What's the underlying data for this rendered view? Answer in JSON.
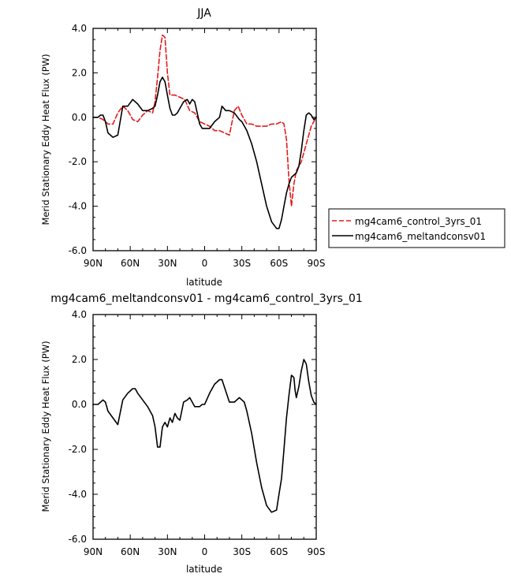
{
  "chart_data": [
    {
      "type": "line",
      "title": "JJA",
      "xlabel": "latitude",
      "ylabel": "Merid Stationary Eddy Heat Flux (PW)",
      "xlim": [
        90,
        -90
      ],
      "ylim": [
        -6,
        4
      ],
      "x_ticks": [
        90,
        60,
        30,
        0,
        -30,
        -60,
        -90
      ],
      "x_tick_labels": [
        "90N",
        "60N",
        "30N",
        "0",
        "30S",
        "60S",
        "90S"
      ],
      "y_ticks": [
        -6,
        -4,
        -2,
        0,
        2,
        4
      ],
      "y_tick_labels": [
        "-6.0",
        "-4.0",
        "-2.0",
        "0.0",
        "2.0",
        "4.0"
      ],
      "grid": false,
      "legend": "right",
      "series": [
        {
          "name": "mg4cam6_control_3yrs_01",
          "color": "#e31a1c",
          "style": "dashed",
          "x": [
            90,
            86,
            82,
            78,
            74,
            70,
            66,
            62,
            58,
            54,
            50,
            46,
            42,
            40,
            38,
            36,
            34,
            32,
            30,
            28,
            24,
            20,
            16,
            12,
            8,
            4,
            0,
            -4,
            -8,
            -12,
            -16,
            -20,
            -24,
            -27,
            -30,
            -34,
            -38,
            -42,
            -46,
            -50,
            -54,
            -58,
            -62,
            -64,
            -66,
            -68,
            -70,
            -72,
            -74,
            -76,
            -78,
            -82,
            -86,
            -90
          ],
          "y": [
            0.0,
            0.0,
            -0.1,
            -0.3,
            -0.3,
            0.2,
            0.5,
            0.3,
            -0.1,
            -0.2,
            0.1,
            0.3,
            0.2,
            0.7,
            1.8,
            3.0,
            3.7,
            3.6,
            2.0,
            1.0,
            1.0,
            0.9,
            0.8,
            0.3,
            0.2,
            -0.2,
            -0.3,
            -0.4,
            -0.6,
            -0.6,
            -0.7,
            -0.8,
            0.3,
            0.5,
            0.1,
            -0.3,
            -0.3,
            -0.4,
            -0.4,
            -0.4,
            -0.3,
            -0.3,
            -0.2,
            -0.3,
            -1.0,
            -2.8,
            -4.0,
            -3.0,
            -2.4,
            -2.2,
            -2.0,
            -1.2,
            -0.4,
            0.0
          ]
        },
        {
          "name": "mg4cam6_meltandconsv01",
          "color": "#000000",
          "style": "solid",
          "x": [
            90,
            86,
            84,
            82,
            80,
            78,
            74,
            70,
            66,
            62,
            58,
            54,
            50,
            46,
            42,
            40,
            38,
            36,
            34,
            32,
            30,
            28,
            26,
            24,
            22,
            20,
            17,
            14,
            12,
            10,
            8,
            6,
            4,
            2,
            0,
            -4,
            -8,
            -12,
            -14,
            -17,
            -20,
            -24,
            -28,
            -30,
            -34,
            -38,
            -42,
            -46,
            -50,
            -54,
            -58,
            -60,
            -62,
            -64,
            -66,
            -68,
            -70,
            -72,
            -74,
            -76,
            -78,
            -80,
            -82,
            -84,
            -86,
            -88,
            -90
          ],
          "y": [
            0.0,
            0.0,
            0.1,
            0.1,
            -0.2,
            -0.7,
            -0.9,
            -0.8,
            0.5,
            0.5,
            0.8,
            0.6,
            0.3,
            0.3,
            0.4,
            0.5,
            1.0,
            1.6,
            1.8,
            1.6,
            1.0,
            0.4,
            0.1,
            0.1,
            0.2,
            0.4,
            0.7,
            0.8,
            0.6,
            0.8,
            0.7,
            0.2,
            -0.3,
            -0.5,
            -0.5,
            -0.5,
            -0.2,
            0.0,
            0.5,
            0.3,
            0.3,
            0.2,
            -0.1,
            -0.2,
            -0.6,
            -1.2,
            -2.0,
            -3.0,
            -4.0,
            -4.7,
            -5.0,
            -5.0,
            -4.6,
            -4.0,
            -3.4,
            -3.0,
            -2.7,
            -2.6,
            -2.5,
            -2.2,
            -1.5,
            -0.6,
            0.1,
            0.2,
            0.1,
            -0.1,
            0.0
          ]
        }
      ]
    },
    {
      "type": "line",
      "title": "mg4cam6_meltandconsv01 - mg4cam6_control_3yrs_01",
      "xlabel": "latitude",
      "ylabel": "Merid Stationary Eddy Heat Flux (PW)",
      "xlim": [
        90,
        -90
      ],
      "ylim": [
        -6,
        4
      ],
      "x_ticks": [
        90,
        60,
        30,
        0,
        -30,
        -60,
        -90
      ],
      "x_tick_labels": [
        "90N",
        "60N",
        "30N",
        "0",
        "30S",
        "60S",
        "90S"
      ],
      "y_ticks": [
        -6,
        -4,
        -2,
        0,
        2,
        4
      ],
      "y_tick_labels": [
        "-6.0",
        "-4.0",
        "-2.0",
        "0.0",
        "2.0",
        "4.0"
      ],
      "grid": false,
      "series": [
        {
          "color": "#000000",
          "style": "solid",
          "x": [
            90,
            86,
            82,
            80,
            78,
            74,
            70,
            66,
            62,
            58,
            56,
            54,
            50,
            46,
            44,
            42,
            40,
            38,
            36,
            34,
            32,
            30,
            28,
            26,
            24,
            22,
            20,
            17,
            14,
            12,
            10,
            8,
            6,
            4,
            2,
            0,
            -4,
            -8,
            -12,
            -14,
            -17,
            -20,
            -24,
            -28,
            -30,
            -32,
            -34,
            -38,
            -42,
            -46,
            -50,
            -54,
            -58,
            -60,
            -62,
            -64,
            -66,
            -68,
            -70,
            -72,
            -73,
            -74,
            -76,
            -78,
            -80,
            -82,
            -84,
            -86,
            -88,
            -90
          ],
          "y": [
            0.0,
            0.0,
            0.2,
            0.1,
            -0.3,
            -0.6,
            -0.9,
            0.2,
            0.5,
            0.7,
            0.7,
            0.5,
            0.2,
            -0.1,
            -0.3,
            -0.5,
            -1.0,
            -1.9,
            -1.9,
            -1.0,
            -0.8,
            -1.0,
            -0.6,
            -0.8,
            -0.4,
            -0.6,
            -0.7,
            0.1,
            0.2,
            0.3,
            0.1,
            -0.1,
            -0.1,
            -0.1,
            0.0,
            0.0,
            0.5,
            0.9,
            1.1,
            1.1,
            0.6,
            0.1,
            0.1,
            0.3,
            0.2,
            0.1,
            -0.3,
            -1.3,
            -2.6,
            -3.7,
            -4.5,
            -4.8,
            -4.7,
            -4.0,
            -3.3,
            -2.0,
            -0.6,
            0.4,
            1.3,
            1.2,
            0.6,
            0.3,
            0.8,
            1.5,
            2.0,
            1.8,
            1.0,
            0.4,
            0.1,
            0.0
          ]
        }
      ]
    }
  ]
}
